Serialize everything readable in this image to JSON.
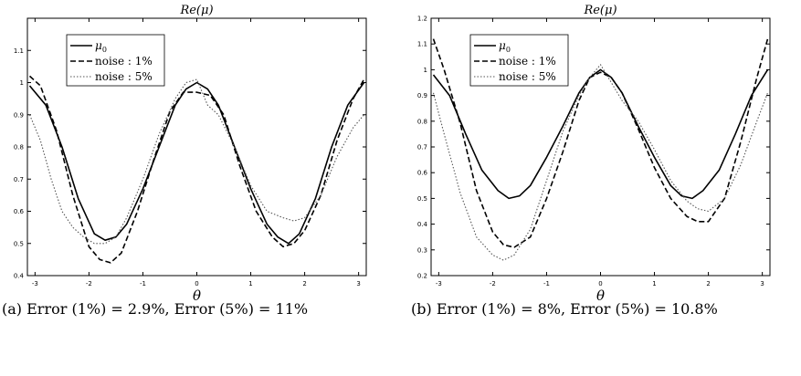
{
  "figure": {
    "panels": [
      {
        "id": "a",
        "caption": "(a) Error (1%) = 2.9%, Error (5%) = 11%"
      },
      {
        "id": "b",
        "caption": "(b) Error (1%) = 8%, Error (5%) = 10.8%"
      }
    ]
  },
  "chart_data": [
    {
      "type": "line",
      "title": "Re(μ)",
      "xlabel": "θ",
      "ylabel": "",
      "xlim": [
        -3.1416,
        3.1416
      ],
      "ylim": [
        0.4,
        1.2
      ],
      "xticks": [
        -3,
        -2,
        -1,
        0,
        1,
        2,
        3
      ],
      "yticks": [
        0.4,
        0.5,
        0.6,
        0.7,
        0.8,
        0.9,
        1,
        1.1
      ],
      "legend_position": "top-left",
      "series": [
        {
          "name": "μ0",
          "style": "solid",
          "x": [
            -3.1,
            -2.8,
            -2.5,
            -2.2,
            -1.9,
            -1.7,
            -1.5,
            -1.3,
            -1.0,
            -0.7,
            -0.4,
            -0.2,
            0.0,
            0.2,
            0.4,
            0.7,
            1.0,
            1.3,
            1.5,
            1.7,
            1.9,
            2.2,
            2.5,
            2.8,
            3.1
          ],
          "y": [
            0.99,
            0.93,
            0.8,
            0.64,
            0.53,
            0.51,
            0.52,
            0.56,
            0.67,
            0.8,
            0.93,
            0.98,
            1.0,
            0.98,
            0.93,
            0.8,
            0.67,
            0.56,
            0.52,
            0.5,
            0.53,
            0.64,
            0.8,
            0.93,
            1.0
          ]
        },
        {
          "name": "noise : 1%",
          "style": "dashed",
          "x": [
            -3.1,
            -2.9,
            -2.6,
            -2.3,
            -2.0,
            -1.8,
            -1.6,
            -1.4,
            -1.1,
            -0.8,
            -0.5,
            -0.25,
            0.0,
            0.25,
            0.5,
            0.8,
            1.1,
            1.4,
            1.6,
            1.8,
            2.0,
            2.3,
            2.6,
            2.9,
            3.1
          ],
          "y": [
            1.02,
            0.99,
            0.85,
            0.65,
            0.49,
            0.45,
            0.44,
            0.47,
            0.6,
            0.76,
            0.91,
            0.97,
            0.97,
            0.96,
            0.9,
            0.74,
            0.6,
            0.52,
            0.49,
            0.5,
            0.54,
            0.65,
            0.82,
            0.95,
            1.01
          ]
        },
        {
          "name": "noise : 5%",
          "style": "dotted",
          "x": [
            -3.1,
            -2.9,
            -2.7,
            -2.5,
            -2.3,
            -2.1,
            -1.9,
            -1.7,
            -1.5,
            -1.3,
            -1.0,
            -0.7,
            -0.4,
            -0.2,
            0.0,
            0.2,
            0.4,
            0.7,
            1.0,
            1.3,
            1.6,
            1.8,
            2.0,
            2.3,
            2.6,
            2.9,
            3.1
          ],
          "y": [
            0.9,
            0.82,
            0.7,
            0.6,
            0.55,
            0.52,
            0.5,
            0.5,
            0.52,
            0.58,
            0.7,
            0.84,
            0.95,
            1.0,
            1.01,
            0.93,
            0.9,
            0.8,
            0.68,
            0.6,
            0.58,
            0.57,
            0.58,
            0.65,
            0.77,
            0.86,
            0.9
          ]
        }
      ]
    },
    {
      "type": "line",
      "title": "Re(μ)",
      "xlabel": "θ",
      "ylabel": "",
      "xlim": [
        -3.1416,
        3.1416
      ],
      "ylim": [
        0.2,
        1.2
      ],
      "xticks": [
        -3,
        -2,
        -1,
        0,
        1,
        2,
        3
      ],
      "yticks": [
        0.2,
        0.3,
        0.4,
        0.5,
        0.6,
        0.7,
        0.8,
        0.9,
        1,
        1.1,
        1.2
      ],
      "legend_position": "top-left",
      "series": [
        {
          "name": "μ0",
          "style": "solid",
          "x": [
            -3.1,
            -2.8,
            -2.5,
            -2.2,
            -1.9,
            -1.7,
            -1.5,
            -1.3,
            -1.0,
            -0.7,
            -0.4,
            -0.2,
            0.0,
            0.2,
            0.4,
            0.7,
            1.0,
            1.3,
            1.5,
            1.7,
            1.9,
            2.2,
            2.5,
            2.8,
            3.1
          ],
          "y": [
            0.98,
            0.9,
            0.75,
            0.61,
            0.53,
            0.5,
            0.51,
            0.55,
            0.66,
            0.78,
            0.91,
            0.97,
            1.0,
            0.97,
            0.91,
            0.78,
            0.66,
            0.55,
            0.51,
            0.5,
            0.53,
            0.61,
            0.75,
            0.9,
            1.0
          ]
        },
        {
          "name": "noise : 1%",
          "style": "dashed",
          "x": [
            -3.1,
            -2.9,
            -2.6,
            -2.3,
            -2.0,
            -1.8,
            -1.6,
            -1.3,
            -1.0,
            -0.7,
            -0.4,
            -0.2,
            0.0,
            0.2,
            0.4,
            0.7,
            1.0,
            1.3,
            1.6,
            1.8,
            2.0,
            2.3,
            2.6,
            2.9,
            3.1
          ],
          "y": [
            1.12,
            1.0,
            0.79,
            0.53,
            0.37,
            0.32,
            0.31,
            0.35,
            0.5,
            0.68,
            0.88,
            0.97,
            0.99,
            0.97,
            0.91,
            0.77,
            0.62,
            0.5,
            0.43,
            0.41,
            0.41,
            0.5,
            0.72,
            0.97,
            1.12
          ]
        },
        {
          "name": "noise : 5%",
          "style": "dotted",
          "x": [
            -3.1,
            -2.9,
            -2.6,
            -2.3,
            -2.0,
            -1.8,
            -1.6,
            -1.3,
            -1.0,
            -0.7,
            -0.4,
            -0.2,
            0.0,
            0.2,
            0.4,
            0.7,
            1.0,
            1.3,
            1.6,
            1.8,
            2.0,
            2.3,
            2.6,
            2.9,
            3.1
          ],
          "y": [
            0.91,
            0.75,
            0.52,
            0.35,
            0.28,
            0.26,
            0.28,
            0.38,
            0.57,
            0.76,
            0.9,
            0.97,
            1.02,
            0.95,
            0.88,
            0.8,
            0.69,
            0.57,
            0.49,
            0.46,
            0.45,
            0.5,
            0.63,
            0.8,
            0.91
          ]
        }
      ]
    }
  ]
}
